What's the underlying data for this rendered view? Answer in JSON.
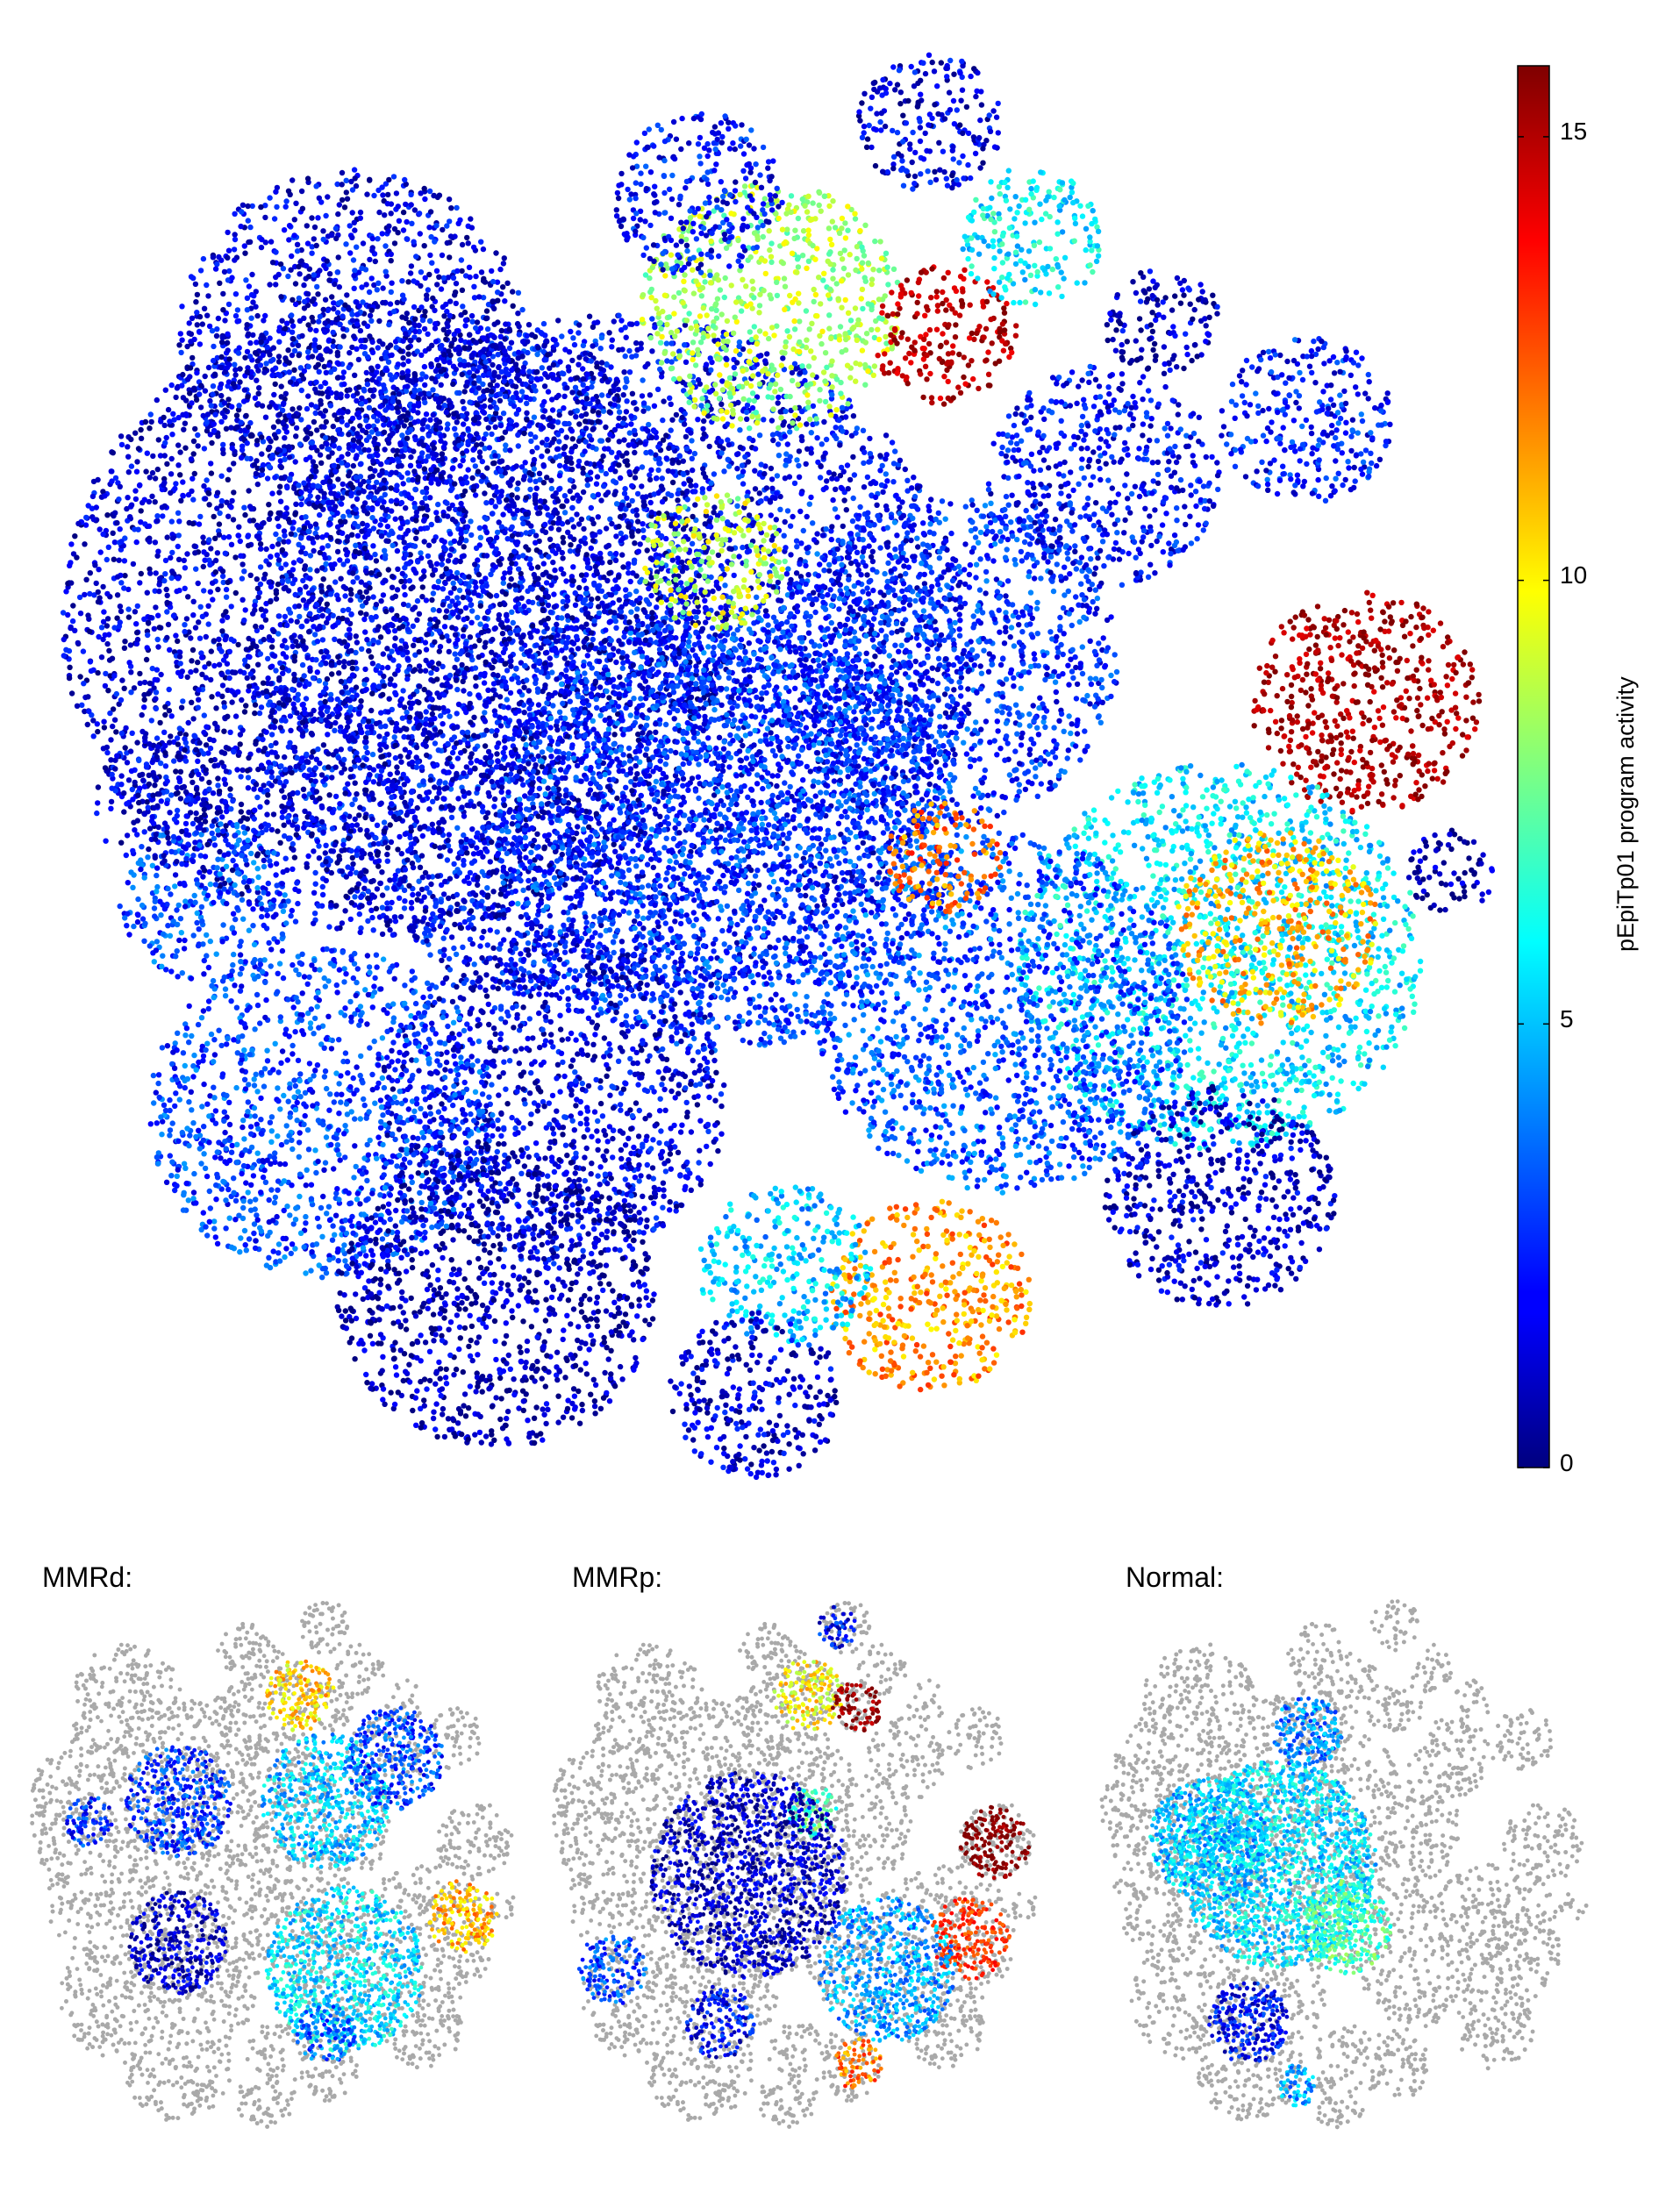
{
  "chart_data": {
    "type": "scatter",
    "subtype": "embedding-density",
    "colormap": "jet",
    "background_color": "#a9a9a9",
    "colorbar": {
      "label": "pEpiTp01 program activity",
      "range": [
        0,
        15.8
      ],
      "ticks": [
        0,
        5,
        10,
        15
      ],
      "tick_labels": [
        "0",
        "5",
        "10",
        "15"
      ],
      "position": "right"
    },
    "panels": [
      {
        "key": "all",
        "title": "",
        "clusters": [
          {
            "cx": 0.38,
            "cy": 0.43,
            "r": 0.25,
            "value": 2.0
          },
          {
            "cx": 0.23,
            "cy": 0.4,
            "r": 0.23,
            "value": 1.4
          },
          {
            "cx": 0.46,
            "cy": 0.55,
            "r": 0.16,
            "value": 2.8
          },
          {
            "cx": 0.34,
            "cy": 0.74,
            "r": 0.12,
            "value": 1.6
          },
          {
            "cx": 0.18,
            "cy": 0.75,
            "r": 0.12,
            "value": 2.9
          },
          {
            "cx": 0.3,
            "cy": 0.88,
            "r": 0.11,
            "value": 0.8
          },
          {
            "cx": 0.2,
            "cy": 0.2,
            "r": 0.12,
            "value": 1.5
          },
          {
            "cx": 0.49,
            "cy": 0.18,
            "r": 0.09,
            "value": 8.5
          },
          {
            "cx": 0.61,
            "cy": 0.2,
            "r": 0.05,
            "value": 15.0
          },
          {
            "cx": 0.6,
            "cy": 0.05,
            "r": 0.05,
            "value": 1.5
          },
          {
            "cx": 0.67,
            "cy": 0.13,
            "r": 0.05,
            "value": 5.8
          },
          {
            "cx": 0.45,
            "cy": 0.36,
            "r": 0.05,
            "value": 9.0
          },
          {
            "cx": 0.61,
            "cy": 0.43,
            "r": 0.12,
            "value": 2.6
          },
          {
            "cx": 0.72,
            "cy": 0.3,
            "r": 0.08,
            "value": 2.0
          },
          {
            "cx": 0.86,
            "cy": 0.26,
            "r": 0.06,
            "value": 2.3
          },
          {
            "cx": 0.9,
            "cy": 0.46,
            "r": 0.08,
            "value": 15.2
          },
          {
            "cx": 0.8,
            "cy": 0.64,
            "r": 0.14,
            "value": 5.5
          },
          {
            "cx": 0.84,
            "cy": 0.62,
            "r": 0.07,
            "value": 11.0
          },
          {
            "cx": 0.65,
            "cy": 0.68,
            "r": 0.13,
            "value": 3.2
          },
          {
            "cx": 0.61,
            "cy": 0.57,
            "r": 0.04,
            "value": 12.0
          },
          {
            "cx": 0.6,
            "cy": 0.88,
            "r": 0.07,
            "value": 11.5
          },
          {
            "cx": 0.5,
            "cy": 0.86,
            "r": 0.06,
            "value": 5.0
          },
          {
            "cx": 0.48,
            "cy": 0.95,
            "r": 0.06,
            "value": 1.2
          },
          {
            "cx": 0.8,
            "cy": 0.81,
            "r": 0.08,
            "value": 1.2
          },
          {
            "cx": 0.96,
            "cy": 0.58,
            "r": 0.03,
            "value": 0.5
          },
          {
            "cx": 0.1,
            "cy": 0.6,
            "r": 0.06,
            "value": 3.0
          },
          {
            "cx": 0.07,
            "cy": 0.53,
            "r": 0.05,
            "value": 1.5
          },
          {
            "cx": 0.44,
            "cy": 0.1,
            "r": 0.06,
            "value": 2.0
          },
          {
            "cx": 0.76,
            "cy": 0.19,
            "r": 0.04,
            "value": 1.0
          }
        ]
      },
      {
        "key": "mmrd",
        "title": "MMRd:",
        "clusters": [
          {
            "cx": 0.55,
            "cy": 0.18,
            "r": 0.07,
            "value": 10.5
          },
          {
            "cx": 0.6,
            "cy": 0.38,
            "r": 0.13,
            "value": 5.0
          },
          {
            "cx": 0.74,
            "cy": 0.3,
            "r": 0.1,
            "value": 3.0
          },
          {
            "cx": 0.64,
            "cy": 0.7,
            "r": 0.16,
            "value": 5.5
          },
          {
            "cx": 0.88,
            "cy": 0.6,
            "r": 0.07,
            "value": 11.0
          },
          {
            "cx": 0.3,
            "cy": 0.38,
            "r": 0.11,
            "value": 2.8
          },
          {
            "cx": 0.12,
            "cy": 0.42,
            "r": 0.05,
            "value": 2.5
          },
          {
            "cx": 0.3,
            "cy": 0.65,
            "r": 0.1,
            "value": 1.0
          },
          {
            "cx": 0.6,
            "cy": 0.82,
            "r": 0.06,
            "value": 3.5
          }
        ]
      },
      {
        "key": "mmrp",
        "title": "MMRp:",
        "clusters": [
          {
            "cx": 0.52,
            "cy": 0.18,
            "r": 0.07,
            "value": 10.0
          },
          {
            "cx": 0.62,
            "cy": 0.2,
            "r": 0.05,
            "value": 15.5
          },
          {
            "cx": 0.9,
            "cy": 0.46,
            "r": 0.07,
            "value": 15.8
          },
          {
            "cx": 0.85,
            "cy": 0.64,
            "r": 0.08,
            "value": 13.0
          },
          {
            "cx": 0.68,
            "cy": 0.7,
            "r": 0.14,
            "value": 4.5
          },
          {
            "cx": 0.62,
            "cy": 0.88,
            "r": 0.05,
            "value": 12.0
          },
          {
            "cx": 0.12,
            "cy": 0.7,
            "r": 0.07,
            "value": 3.0
          },
          {
            "cx": 0.34,
            "cy": 0.8,
            "r": 0.07,
            "value": 2.0
          },
          {
            "cx": 0.53,
            "cy": 0.4,
            "r": 0.05,
            "value": 7.0
          },
          {
            "cx": 0.58,
            "cy": 0.05,
            "r": 0.04,
            "value": 2.0
          },
          {
            "cx": 0.4,
            "cy": 0.52,
            "r": 0.2,
            "value": 1.0
          }
        ]
      },
      {
        "key": "normal",
        "title": "Normal:",
        "clusters": [
          {
            "cx": 0.36,
            "cy": 0.5,
            "r": 0.2,
            "value": 5.5
          },
          {
            "cx": 0.22,
            "cy": 0.45,
            "r": 0.12,
            "value": 5.0
          },
          {
            "cx": 0.42,
            "cy": 0.25,
            "r": 0.07,
            "value": 4.0
          },
          {
            "cx": 0.3,
            "cy": 0.8,
            "r": 0.08,
            "value": 2.0
          },
          {
            "cx": 0.5,
            "cy": 0.62,
            "r": 0.09,
            "value": 7.0
          },
          {
            "cx": 0.4,
            "cy": 0.92,
            "r": 0.04,
            "value": 4.5
          }
        ]
      }
    ]
  }
}
